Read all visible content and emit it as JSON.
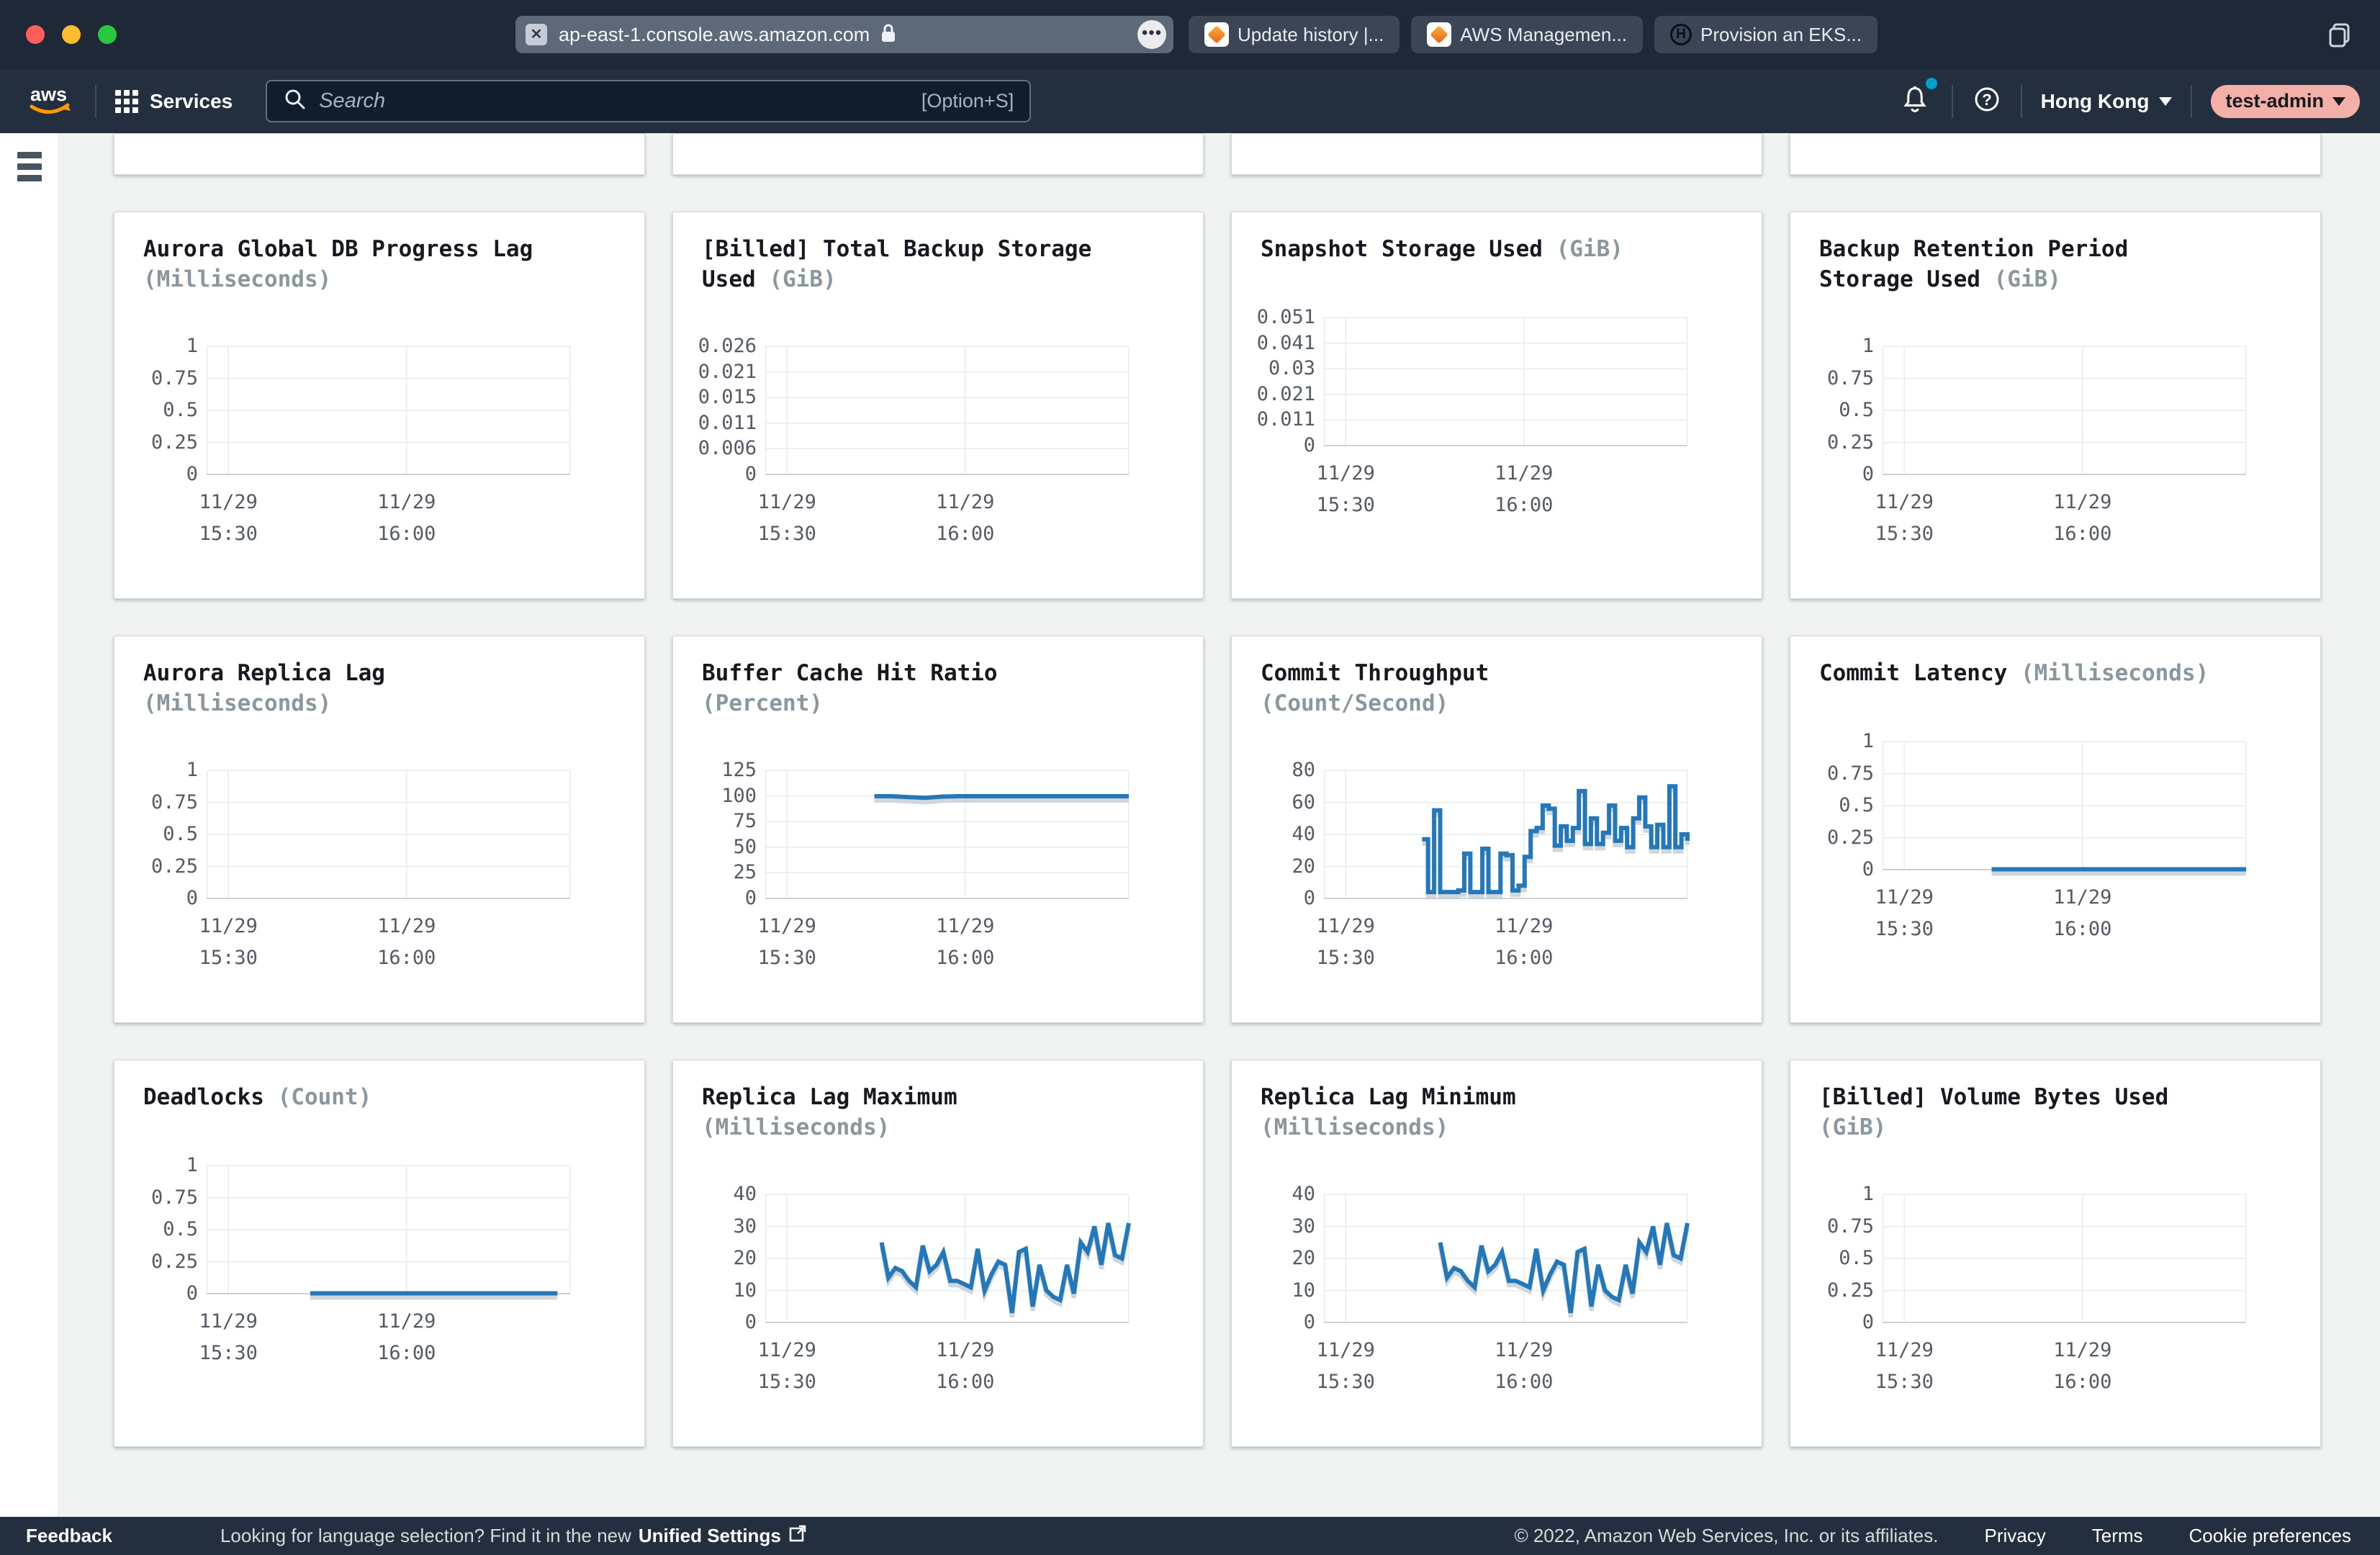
{
  "browser": {
    "url": "ap-east-1.console.aws.amazon.com",
    "tabs": [
      {
        "label": "Update history |...",
        "icon": "aws-icon"
      },
      {
        "label": "AWS Managemen...",
        "icon": "aws-icon"
      },
      {
        "label": "Provision an EKS...",
        "icon": "hashicorp-icon"
      }
    ]
  },
  "nav": {
    "services_label": "Services",
    "search_placeholder": "Search",
    "search_shortcut": "[Option+S]",
    "region": "Hong Kong",
    "account": "test-admin"
  },
  "footer": {
    "feedback": "Feedback",
    "notice_prefix": "Looking for language selection? Find it in the new ",
    "notice_link": "Unified Settings",
    "copyright": "© 2022, Amazon Web Services, Inc. or its affiliates.",
    "links": [
      "Privacy",
      "Terms",
      "Cookie preferences"
    ]
  },
  "colors": {
    "chart_line": "#2478b9",
    "chart_line_shadow": "#c0c9d0",
    "nav_bg": "#232f3e",
    "chrome_bg": "#1e2836",
    "notification_dot": "#00a1c9",
    "account_pill": "#f3b0a9",
    "traffic_red": "#ff5f57",
    "traffic_yellow": "#febc2e",
    "traffic_green": "#28c840"
  },
  "chart_data": [
    {
      "type": "line",
      "title": "Aurora Global DB Progress Lag",
      "unit": "(Milliseconds)",
      "title_lines": 2,
      "y_ticks": [
        "1",
        "0.75",
        "0.5",
        "0.25",
        "0"
      ],
      "ylim": [
        0,
        1
      ],
      "x_ticks": [
        {
          "line1": "11/29",
          "line2": "15:30"
        },
        {
          "line1": "11/29",
          "line2": "16:00"
        }
      ],
      "series": null
    },
    {
      "type": "line",
      "title": "[Billed] Total Backup Storage Used",
      "unit": "(GiB)",
      "title_lines": 2,
      "y_ticks": [
        "0.026",
        "0.021",
        "0.015",
        "0.011",
        "0.006",
        "0"
      ],
      "ylim": [
        0,
        0.026
      ],
      "x_ticks": [
        {
          "line1": "11/29",
          "line2": "15:30"
        },
        {
          "line1": "11/29",
          "line2": "16:00"
        }
      ],
      "series": null
    },
    {
      "type": "line",
      "title": "Snapshot Storage Used",
      "unit": "(GiB)",
      "title_lines": 1,
      "y_ticks": [
        "0.051",
        "0.041",
        "0.03",
        "0.021",
        "0.011",
        "0"
      ],
      "ylim": [
        0,
        0.051
      ],
      "x_ticks": [
        {
          "line1": "11/29",
          "line2": "15:30"
        },
        {
          "line1": "11/29",
          "line2": "16:00"
        }
      ],
      "series": null
    },
    {
      "type": "line",
      "title": "Backup Retention Period Storage Used",
      "unit": "(GiB)",
      "title_lines": 2,
      "y_ticks": [
        "1",
        "0.75",
        "0.5",
        "0.25",
        "0"
      ],
      "ylim": [
        0,
        1
      ],
      "x_ticks": [
        {
          "line1": "11/29",
          "line2": "15:30"
        },
        {
          "line1": "11/29",
          "line2": "16:00"
        }
      ],
      "series": null
    },
    {
      "type": "line",
      "title": "Aurora Replica Lag",
      "unit": "(Milliseconds)",
      "title_lines": 2,
      "y_ticks": [
        "1",
        "0.75",
        "0.5",
        "0.25",
        "0"
      ],
      "ylim": [
        0,
        1
      ],
      "x_ticks": [
        {
          "line1": "11/29",
          "line2": "15:30"
        },
        {
          "line1": "11/29",
          "line2": "16:00"
        }
      ],
      "series": null
    },
    {
      "type": "line",
      "title": "Buffer Cache Hit Ratio",
      "unit": "(Percent)",
      "title_lines": 2,
      "y_ticks": [
        "125",
        "100",
        "75",
        "50",
        "25",
        "0"
      ],
      "ylim": [
        0,
        125
      ],
      "x_ticks": [
        {
          "line1": "11/29",
          "line2": "15:30"
        },
        {
          "line1": "11/29",
          "line2": "16:00"
        }
      ],
      "series": {
        "type": "line",
        "start_frac": 0.3,
        "end_frac": 1.0,
        "values": [
          99.7,
          99.7,
          98.9,
          98.2,
          99.4,
          99.7,
          99.7,
          99.7,
          99.7,
          99.7,
          99.7,
          99.7,
          99.7,
          99.7,
          99.7,
          99.7
        ]
      }
    },
    {
      "type": "line",
      "title": "Commit Throughput",
      "unit": "(Count/Second)",
      "title_lines": 2,
      "y_ticks": [
        "80",
        "60",
        "40",
        "20",
        "0"
      ],
      "ylim": [
        0,
        80
      ],
      "x_ticks": [
        {
          "line1": "11/29",
          "line2": "15:30"
        },
        {
          "line1": "11/29",
          "line2": "16:00"
        }
      ],
      "series": {
        "type": "step",
        "start_frac": 0.27,
        "end_frac": 1.0,
        "values": [
          37,
          4,
          55,
          4,
          4,
          4,
          5,
          28,
          4,
          4,
          31,
          4,
          4,
          28,
          27,
          5,
          8,
          26,
          42,
          44,
          58,
          56,
          33,
          45,
          36,
          44,
          67,
          34,
          50,
          34,
          41,
          58,
          36,
          44,
          32,
          50,
          63,
          45,
          32,
          46,
          32,
          70,
          32,
          40,
          36
        ]
      }
    },
    {
      "type": "line",
      "title": "Commit Latency",
      "unit": "(Milliseconds)",
      "title_lines": 1,
      "y_ticks": [
        "1",
        "0.75",
        "0.5",
        "0.25",
        "0"
      ],
      "ylim": [
        0,
        1
      ],
      "x_ticks": [
        {
          "line1": "11/29",
          "line2": "15:30"
        },
        {
          "line1": "11/29",
          "line2": "16:00"
        }
      ],
      "series": {
        "type": "line",
        "start_frac": 0.3,
        "end_frac": 1.0,
        "values": [
          0.003,
          0.003
        ]
      }
    },
    {
      "type": "line",
      "title": "Deadlocks",
      "unit": "(Count)",
      "title_lines": 1,
      "y_ticks": [
        "1",
        "0.75",
        "0.5",
        "0.25",
        "0"
      ],
      "ylim": [
        0,
        1
      ],
      "x_ticks": [
        {
          "line1": "11/29",
          "line2": "15:30"
        },
        {
          "line1": "11/29",
          "line2": "16:00"
        }
      ],
      "series": {
        "type": "line",
        "start_frac": 0.285,
        "end_frac": 0.965,
        "values": [
          0.003,
          0.003
        ]
      }
    },
    {
      "type": "line",
      "title": "Replica Lag Maximum",
      "unit": "(Milliseconds)",
      "title_lines": 2,
      "y_ticks": [
        "40",
        "30",
        "20",
        "10",
        "0"
      ],
      "ylim": [
        0,
        40
      ],
      "x_ticks": [
        {
          "line1": "11/29",
          "line2": "15:30"
        },
        {
          "line1": "11/29",
          "line2": "16:00"
        }
      ],
      "series": {
        "type": "line",
        "start_frac": 0.32,
        "end_frac": 1.0,
        "values": [
          25,
          14,
          17,
          16,
          13,
          11,
          24,
          16,
          18,
          22,
          13,
          13,
          12,
          11,
          23,
          10,
          15,
          19,
          18,
          3,
          22,
          23,
          5,
          18,
          10,
          8,
          7,
          18,
          9,
          25,
          22,
          30,
          18,
          31,
          21,
          20,
          31
        ]
      }
    },
    {
      "type": "line",
      "title": "Replica Lag Minimum",
      "unit": "(Milliseconds)",
      "title_lines": 2,
      "y_ticks": [
        "40",
        "30",
        "20",
        "10",
        "0"
      ],
      "ylim": [
        0,
        40
      ],
      "x_ticks": [
        {
          "line1": "11/29",
          "line2": "15:30"
        },
        {
          "line1": "11/29",
          "line2": "16:00"
        }
      ],
      "series": {
        "type": "line",
        "start_frac": 0.32,
        "end_frac": 1.0,
        "values": [
          25,
          14,
          17,
          16,
          13,
          11,
          24,
          16,
          18,
          22,
          13,
          13,
          12,
          11,
          23,
          10,
          15,
          19,
          18,
          3,
          22,
          23,
          5,
          18,
          10,
          8,
          7,
          18,
          9,
          25,
          22,
          30,
          18,
          31,
          21,
          20,
          31
        ]
      }
    },
    {
      "type": "line",
      "title": "[Billed] Volume Bytes Used",
      "unit": "(GiB)",
      "title_lines": 2,
      "y_ticks": [
        "1",
        "0.75",
        "0.5",
        "0.25",
        "0"
      ],
      "ylim": [
        0,
        1
      ],
      "x_ticks": [
        {
          "line1": "11/29",
          "line2": "15:30"
        },
        {
          "line1": "11/29",
          "line2": "16:00"
        }
      ],
      "series": null
    }
  ]
}
